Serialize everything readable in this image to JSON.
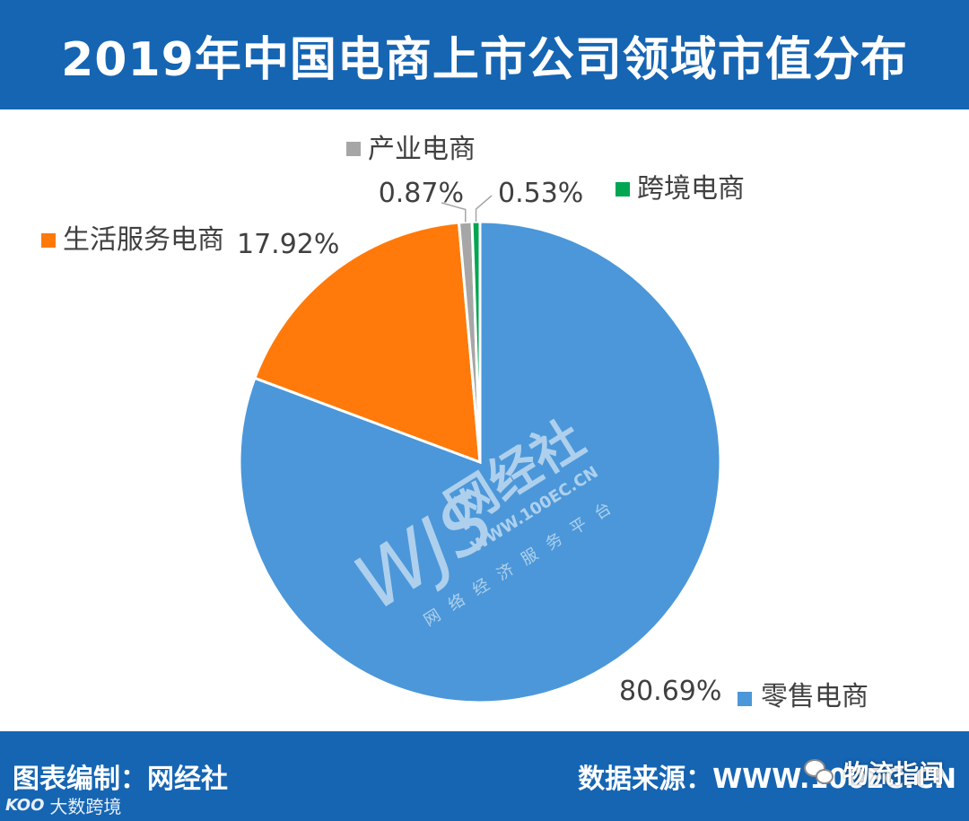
{
  "title": "2019年中国电商上市公司领域市值分布",
  "footer": {
    "credit": "图表编制：网经社",
    "source": "数据来源：WWW.100EC.CN",
    "brand_left": "大数跨境",
    "brand_right": "物流指闻"
  },
  "watermark": {
    "logo": "WJS",
    "name": "网经社",
    "url": "WWW.100EC.CN",
    "tagline": "网络经济服务平台"
  },
  "colors": {
    "header_bg": "#1565b3",
    "retail": "#4b97d9",
    "life_service": "#ff7a0a",
    "industrial": "#a6a6a6",
    "cross_border": "#00a651"
  },
  "chart_data": {
    "type": "pie",
    "title": "2019年中国电商上市公司领域市值分布",
    "slices": [
      {
        "label": "零售电商",
        "value": 80.69,
        "display": "80.69%",
        "color": "#4b97d9"
      },
      {
        "label": "生活服务电商",
        "value": 17.92,
        "display": "17.92%",
        "color": "#ff7a0a"
      },
      {
        "label": "产业电商",
        "value": 0.87,
        "display": "0.87%",
        "color": "#a6a6a6"
      },
      {
        "label": "跨境电商",
        "value": 0.53,
        "display": "0.53%",
        "color": "#00a651"
      }
    ],
    "start_angle_deg": 0,
    "direction": "clockwise",
    "legend": "labels placed beside slices"
  }
}
